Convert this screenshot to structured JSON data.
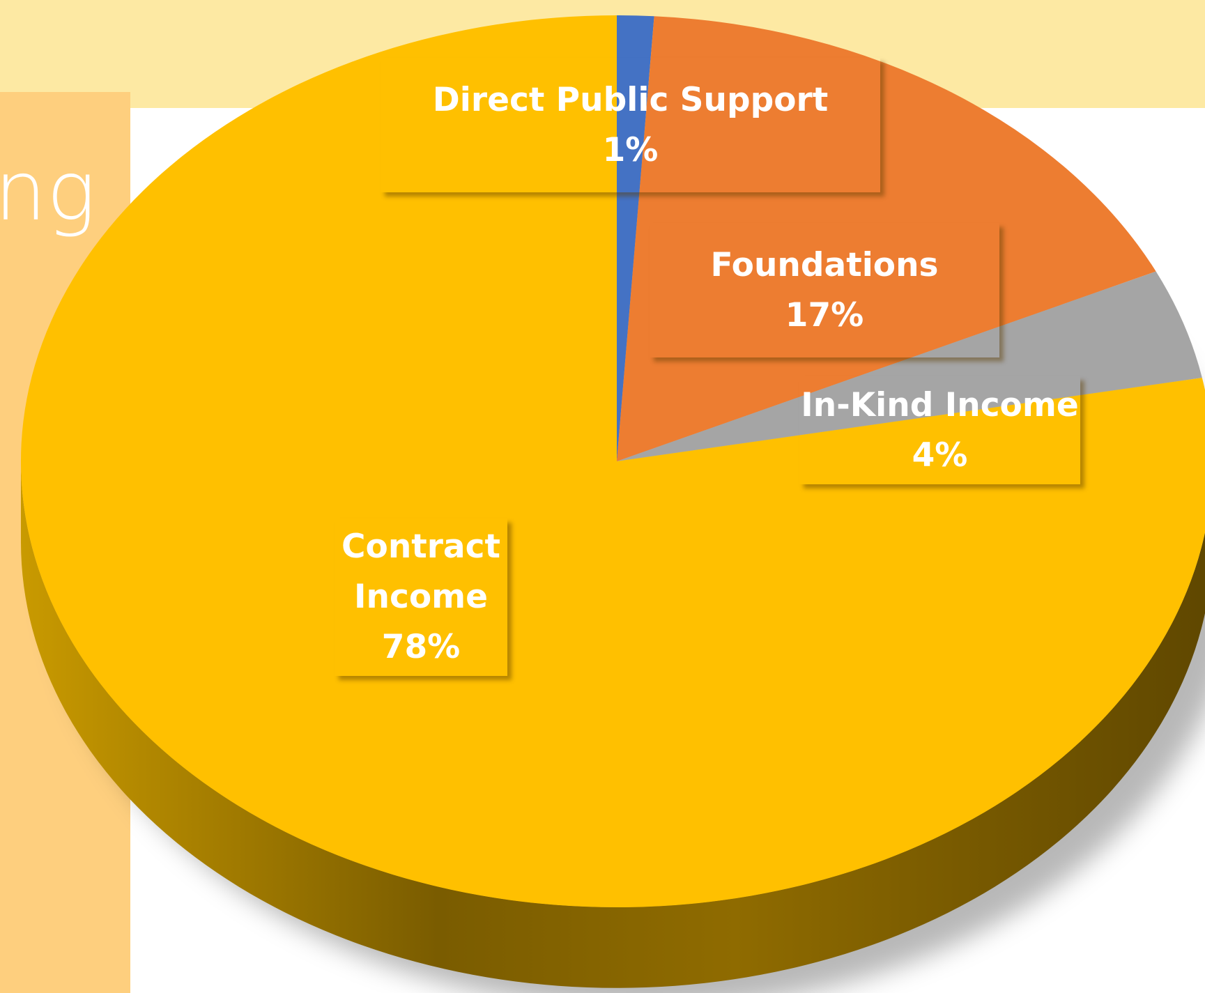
{
  "side_title": "ng",
  "chart_data": {
    "type": "pie",
    "categories": [
      "Direct Public Support",
      "Foundations",
      "In-Kind Income",
      "Contract Income"
    ],
    "values": [
      1,
      17,
      4,
      78
    ],
    "value_labels": [
      "1%",
      "17%",
      "4%",
      "78%"
    ],
    "colors": [
      "#4472c4",
      "#ed7d31",
      "#a5a5a5",
      "#ffc000"
    ]
  }
}
